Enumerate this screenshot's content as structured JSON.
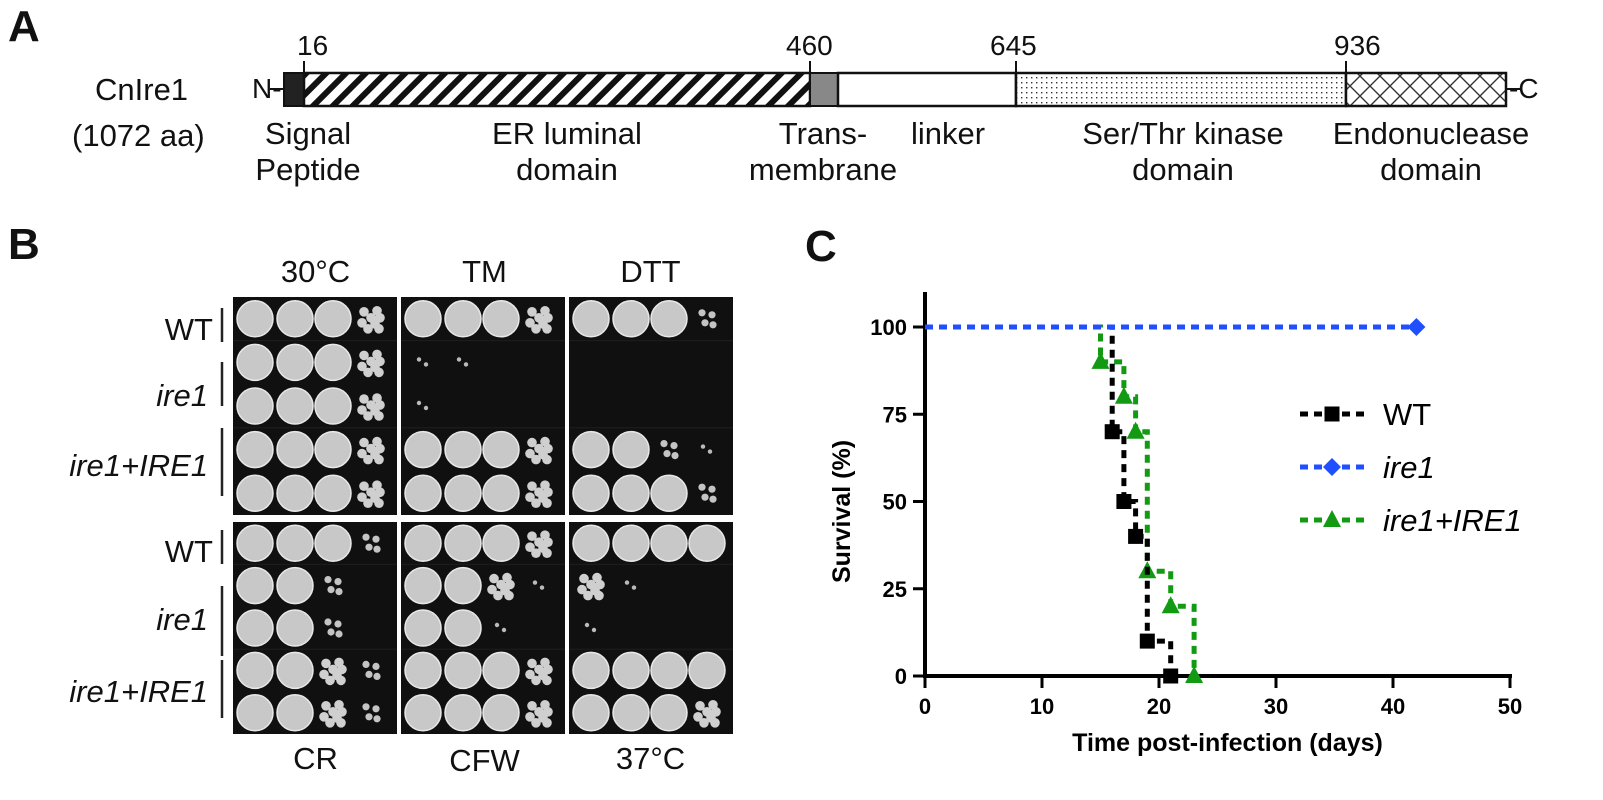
{
  "panels": {
    "a": "A",
    "b": "B",
    "c": "C"
  },
  "panel_a": {
    "protein": "CnIre1",
    "length": "(1072 aa)",
    "n_term": "N-",
    "c_term": "-C",
    "positions": [
      "16",
      "460",
      "645",
      "936"
    ],
    "domains": [
      {
        "line1": "Signal",
        "line2": "Peptide"
      },
      {
        "line1": "ER luminal",
        "line2": "domain"
      },
      {
        "line1": "Trans-",
        "line2": "membrane"
      },
      {
        "line1": "linker",
        "line2": ""
      },
      {
        "line1": "Ser/Thr kinase",
        "line2": "domain"
      },
      {
        "line1": "Endonuclease",
        "line2": "domain"
      }
    ]
  },
  "panel_b": {
    "top_conditions": [
      "30°C",
      "TM",
      "DTT"
    ],
    "bottom_conditions": [
      "CR",
      "CFW",
      "37°C"
    ],
    "strains": [
      "WT",
      "ire1",
      "ire1+IRE1"
    ],
    "growth_levels": {
      "top": [
        [
          [
            4,
            4,
            4,
            3
          ],
          [
            4,
            4,
            4,
            3
          ],
          [
            4,
            4,
            4,
            3
          ],
          [
            4,
            4,
            4,
            3
          ],
          [
            4,
            4,
            4,
            3
          ]
        ],
        [
          [
            4,
            4,
            4,
            3
          ],
          [
            1,
            1,
            0,
            0
          ],
          [
            1,
            0,
            0,
            0
          ],
          [
            4,
            4,
            4,
            3
          ],
          [
            4,
            4,
            4,
            3
          ]
        ],
        [
          [
            4,
            4,
            4,
            2
          ],
          [
            0,
            0,
            0,
            0
          ],
          [
            0,
            0,
            0,
            0
          ],
          [
            4,
            4,
            2,
            1
          ],
          [
            4,
            4,
            4,
            2
          ]
        ]
      ],
      "bottom": [
        [
          [
            4,
            4,
            4,
            2
          ],
          [
            4,
            4,
            2,
            0
          ],
          [
            4,
            4,
            2,
            0
          ],
          [
            4,
            4,
            3,
            2
          ],
          [
            4,
            4,
            3,
            2
          ]
        ],
        [
          [
            4,
            4,
            4,
            3
          ],
          [
            4,
            4,
            3,
            1
          ],
          [
            4,
            4,
            1,
            0
          ],
          [
            4,
            4,
            4,
            3
          ],
          [
            4,
            4,
            4,
            3
          ]
        ],
        [
          [
            4,
            4,
            4,
            4
          ],
          [
            3,
            1,
            0,
            0
          ],
          [
            1,
            0,
            0,
            0
          ],
          [
            4,
            4,
            4,
            4
          ],
          [
            4,
            4,
            4,
            3
          ]
        ]
      ]
    }
  },
  "panel_c": {
    "chart_data": {
      "type": "line",
      "title": "",
      "xlabel": "Time post-infection (days)",
      "ylabel": "Survival (%)",
      "xlim": [
        0,
        50
      ],
      "ylim": [
        0,
        100
      ],
      "xticks": [
        0,
        10,
        20,
        30,
        40,
        50
      ],
      "yticks": [
        0,
        25,
        50,
        75,
        100
      ],
      "legend_position": "right",
      "series": [
        {
          "name": "WT",
          "color": "#000000",
          "marker": "square",
          "x": [
            0,
            16,
            17,
            18,
            19,
            21
          ],
          "y": [
            100,
            70,
            50,
            40,
            10,
            0
          ]
        },
        {
          "name": "ire1",
          "color": "#1f4fff",
          "marker": "diamond",
          "x": [
            0,
            42
          ],
          "y": [
            100,
            100
          ]
        },
        {
          "name": "ire1+IRE1",
          "color": "#139a13",
          "marker": "triangle",
          "x": [
            0,
            15,
            17,
            18,
            19,
            21,
            23
          ],
          "y": [
            100,
            90,
            80,
            70,
            30,
            20,
            0
          ]
        }
      ]
    }
  }
}
